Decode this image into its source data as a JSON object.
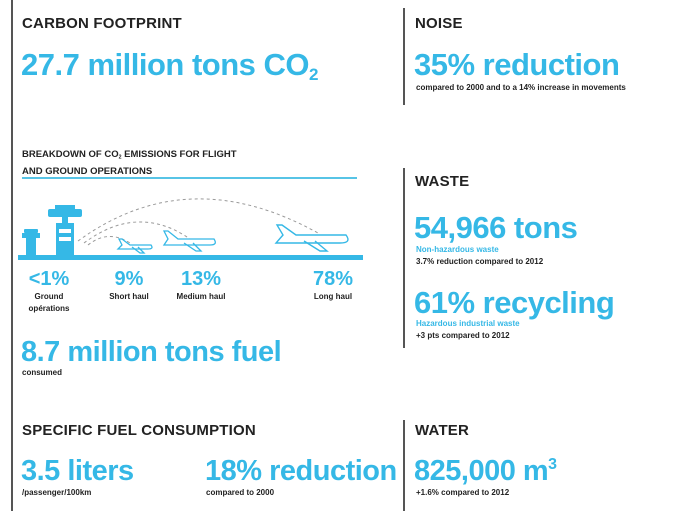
{
  "carbon": {
    "title": "CARBON FOOTPRINT",
    "value": "27.7 million tons CO",
    "value_sub": "2"
  },
  "noise": {
    "title": "NOISE",
    "value": "35% reduction",
    "caption": "compared to 2000 and to a 14% increase in movements"
  },
  "breakdown": {
    "title_line1_a": "BREAKDOWN OF CO",
    "title_line1_sub": "2",
    "title_line1_b": " EMISSIONS FOR FLIGHT",
    "title_line2": "AND GROUND OPERATIONS",
    "items": [
      {
        "percent": "<1%",
        "label_line1": "Ground",
        "label_line2": "opérations"
      },
      {
        "percent": "9%",
        "label_line1": "Short haul",
        "label_line2": ""
      },
      {
        "percent": "13%",
        "label_line1": "Medium haul",
        "label_line2": ""
      },
      {
        "percent": "78%",
        "label_line1": "Long haul",
        "label_line2": ""
      }
    ]
  },
  "fuel": {
    "value": "8.7 million tons fuel",
    "caption": "consumed"
  },
  "specific_fuel": {
    "title": "SPECIFIC FUEL CONSUMPTION",
    "value": "3.5 liters",
    "caption": "/passenger/100km",
    "reduction_value": "18% reduction",
    "reduction_caption": "compared to 2000"
  },
  "waste": {
    "title": "WASTE",
    "tons_value": "54,966 tons",
    "tons_type": "Non-hazardous waste",
    "tons_caption": "3.7% reduction compared to 2012",
    "recycling_value": "61% recycling",
    "recycling_type": "Hazardous industrial waste",
    "recycling_caption": "+3 pts compared to 2012"
  },
  "water": {
    "title": "WATER",
    "value": "825,000 m",
    "value_sup": "3",
    "caption": "+1.6% compared to 2012"
  },
  "colors": {
    "accent": "#35b8e6",
    "text": "#222222",
    "rule": "#555555"
  }
}
